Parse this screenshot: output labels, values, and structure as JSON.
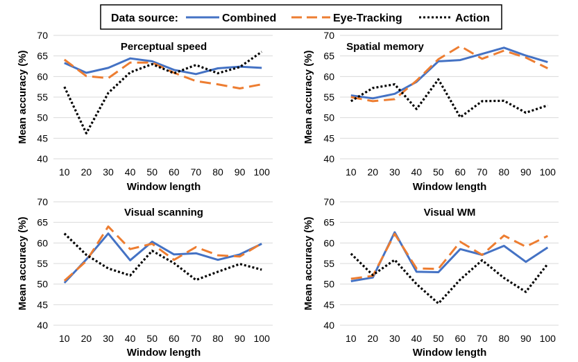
{
  "legend": {
    "title": "Data source:"
  },
  "colors": {
    "Combined": "#4472c4",
    "Eye-Tracking": "#ed7d31",
    "Action": "#000000"
  },
  "chart_data": [
    {
      "type": "line",
      "title": "Perceptual speed",
      "xlabel": "Window length",
      "ylabel": "Mean accuracy (%)",
      "ylim": [
        40,
        70
      ],
      "yticks": [
        40,
        45,
        50,
        55,
        60,
        65,
        70
      ],
      "grid": true,
      "categories": [
        "10",
        "20",
        "30",
        "40",
        "50",
        "60",
        "70",
        "80",
        "90",
        "100"
      ],
      "series": [
        {
          "name": "Combined",
          "values": [
            63.3,
            60.9,
            62.1,
            64.4,
            63.7,
            61.6,
            60.6,
            62.0,
            62.4,
            62.1
          ]
        },
        {
          "name": "Eye-Tracking",
          "values": [
            64.1,
            60.1,
            59.6,
            63.4,
            63.4,
            60.9,
            58.9,
            58.1,
            57.1,
            58.1
          ]
        },
        {
          "name": "Action",
          "values": [
            57.5,
            46.2,
            56.0,
            61.0,
            63.0,
            60.8,
            62.8,
            60.8,
            62.3,
            66.0
          ]
        }
      ]
    },
    {
      "type": "line",
      "title": "Spatial memory",
      "xlabel": "Window length",
      "ylabel": "Mean accuracy (%)",
      "ylim": [
        40,
        70
      ],
      "yticks": [
        40,
        45,
        50,
        55,
        60,
        65,
        70
      ],
      "grid": true,
      "categories": [
        "10",
        "20",
        "30",
        "40",
        "50",
        "60",
        "70",
        "80",
        "90",
        "100"
      ],
      "series": [
        {
          "name": "Combined",
          "values": [
            55.4,
            54.7,
            55.8,
            58.7,
            63.7,
            64.0,
            65.5,
            67.0,
            65.1,
            63.5
          ]
        },
        {
          "name": "Eye-Tracking",
          "values": [
            55.0,
            54.0,
            54.5,
            59.0,
            64.2,
            67.4,
            64.3,
            66.3,
            64.6,
            62.0
          ]
        },
        {
          "name": "Action",
          "values": [
            54.0,
            57.2,
            58.1,
            52.1,
            59.3,
            50.1,
            54.0,
            54.1,
            51.2,
            53.0
          ]
        }
      ]
    },
    {
      "type": "line",
      "title": "Visual scanning",
      "xlabel": "Window length",
      "ylabel": "Mean accuracy (%)",
      "ylim": [
        40,
        70
      ],
      "yticks": [
        40,
        45,
        50,
        55,
        60,
        65,
        70
      ],
      "grid": true,
      "categories": [
        "10",
        "20",
        "30",
        "40",
        "50",
        "60",
        "70",
        "80",
        "90",
        "100"
      ],
      "series": [
        {
          "name": "Combined",
          "values": [
            50.3,
            56.0,
            62.3,
            55.8,
            60.3,
            57.2,
            57.5,
            55.9,
            57.2,
            59.8
          ]
        },
        {
          "name": "Eye-Tracking",
          "values": [
            50.8,
            55.6,
            64.0,
            58.5,
            59.8,
            55.9,
            59.0,
            57.0,
            56.7,
            59.9
          ]
        },
        {
          "name": "Action",
          "values": [
            62.3,
            57.1,
            53.8,
            52.1,
            58.1,
            55.1,
            51.0,
            53.0,
            54.9,
            53.5
          ]
        }
      ]
    },
    {
      "type": "line",
      "title": "Visual WM",
      "xlabel": "Window length",
      "ylabel": "Mean accuracy (%)",
      "ylim": [
        40,
        70
      ],
      "yticks": [
        40,
        45,
        50,
        55,
        60,
        65,
        70
      ],
      "grid": true,
      "categories": [
        "10",
        "20",
        "30",
        "40",
        "50",
        "60",
        "70",
        "80",
        "90",
        "100"
      ],
      "series": [
        {
          "name": "Combined",
          "values": [
            50.7,
            51.6,
            62.6,
            53.0,
            52.9,
            58.5,
            57.1,
            59.3,
            55.4,
            58.9
          ]
        },
        {
          "name": "Eye-Tracking",
          "values": [
            51.3,
            52.0,
            62.2,
            53.8,
            53.7,
            60.3,
            57.1,
            61.8,
            59.1,
            61.7
          ]
        },
        {
          "name": "Action",
          "values": [
            57.4,
            52.2,
            55.9,
            50.0,
            45.3,
            51.1,
            55.8,
            51.5,
            48.1,
            54.9
          ]
        }
      ]
    }
  ]
}
